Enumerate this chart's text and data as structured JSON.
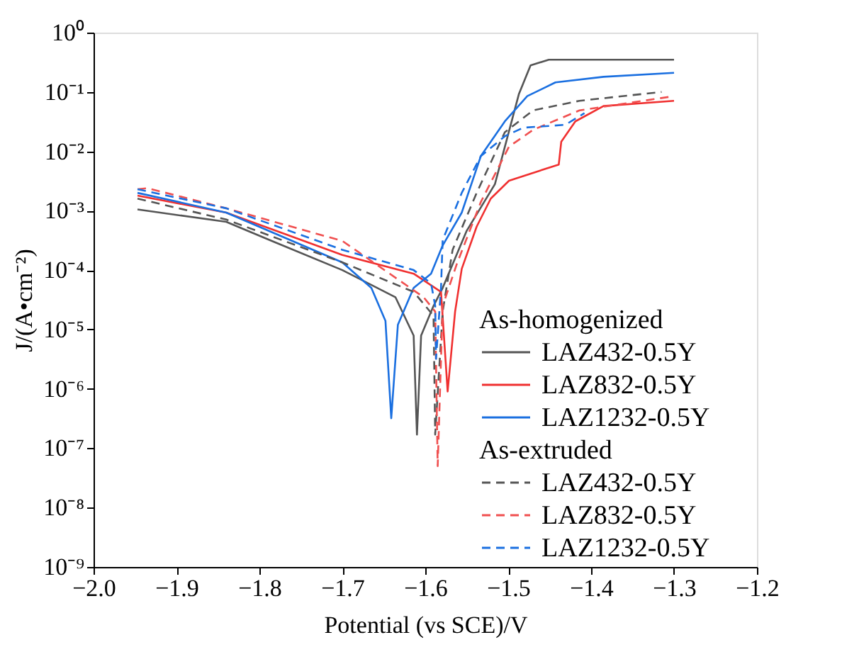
{
  "chart_data": {
    "type": "line",
    "xlabel": "Potential (vs SCE)/V",
    "ylabel": "J/(A•cm⁻²)",
    "xlim": [
      -2.0,
      -1.2
    ],
    "xticks": [
      {
        "value": -2.0,
        "label": "−2.0"
      },
      {
        "value": -1.9,
        "label": "−1.9"
      },
      {
        "value": -1.8,
        "label": "−1.8"
      },
      {
        "value": -1.7,
        "label": "−1.7"
      },
      {
        "value": -1.6,
        "label": "−1.6"
      },
      {
        "value": -1.5,
        "label": "−1.5"
      },
      {
        "value": -1.4,
        "label": "−1.4"
      },
      {
        "value": -1.3,
        "label": "−1.3"
      },
      {
        "value": -1.2,
        "label": "−1.2"
      }
    ],
    "ylim": [
      1e-09,
      1
    ],
    "log": "y",
    "yticks": [
      {
        "value": 1e-09,
        "label": "10⁻⁹"
      },
      {
        "value": 1e-08,
        "label": "10⁻⁸"
      },
      {
        "value": 1e-07,
        "label": "10⁻⁷"
      },
      {
        "value": 1e-06,
        "label": "10⁻⁶"
      },
      {
        "value": 1e-05,
        "label": "10⁻⁵"
      },
      {
        "value": 0.0001,
        "label": "10⁻⁴"
      },
      {
        "value": 0.001,
        "label": "10⁻³"
      },
      {
        "value": 0.01,
        "label": "10⁻²"
      },
      {
        "value": 0.1,
        "label": "10⁻¹"
      },
      {
        "value": 1,
        "label": "10⁰"
      }
    ],
    "grid": false,
    "legend": "right",
    "marker": "none",
    "annotations": [
      "As-homogenized",
      "As-extruded"
    ],
    "series": [
      {
        "name": "LAZ432-0.5Y",
        "color": "#555555",
        "line_style": "solid",
        "x": [
          -1.947,
          -1.84,
          -1.785,
          -1.7,
          -1.636,
          -1.614,
          -1.61,
          -1.605,
          -1.59,
          -1.579,
          -1.55,
          -1.516,
          -1.487,
          -1.473,
          -1.451,
          -1.3
        ],
        "values": [
          0.00105,
          0.00065,
          0.00031,
          0.0001,
          3.5e-05,
          7.9e-06,
          1.7e-07,
          7.9e-06,
          2.5e-05,
          5e-05,
          0.00046,
          0.0028,
          0.093,
          0.28,
          0.35,
          0.35
        ]
      },
      {
        "name": "LAZ832-0.5Y",
        "color": "#f03030",
        "line_style": "solid",
        "x": [
          -1.947,
          -1.84,
          -1.7,
          -1.614,
          -1.581,
          -1.573,
          -1.564,
          -1.556,
          -1.538,
          -1.521,
          -1.499,
          -1.439,
          -1.436,
          -1.419,
          -1.385,
          -1.3
        ],
        "values": [
          0.0018,
          0.00093,
          0.00018,
          8.7e-05,
          4.3e-05,
          9e-07,
          2e-05,
          0.000105,
          0.00054,
          0.0016,
          0.0032,
          0.006,
          0.0145,
          0.032,
          0.058,
          0.071
        ]
      },
      {
        "name": "LAZ1232-0.5Y",
        "color": "#1a6fe0",
        "line_style": "solid",
        "x": [
          -1.947,
          -1.84,
          -1.7,
          -1.665,
          -1.648,
          -1.641,
          -1.633,
          -1.614,
          -1.593,
          -1.579,
          -1.556,
          -1.533,
          -1.504,
          -1.477,
          -1.443,
          -1.385,
          -1.3
        ],
        "values": [
          0.002,
          0.00093,
          0.000135,
          5e-05,
          1.4e-05,
          3.2e-07,
          1.2e-05,
          5e-05,
          8.7e-05,
          0.00026,
          0.00093,
          0.0083,
          0.032,
          0.085,
          0.145,
          0.18,
          0.21
        ]
      },
      {
        "name": "LAZ432-0.5Y",
        "color": "#555555",
        "line_style": "dashed",
        "x": [
          -1.947,
          -1.84,
          -1.7,
          -1.614,
          -1.59,
          -1.588,
          -1.579,
          -1.567,
          -1.538,
          -1.504,
          -1.47,
          -1.414,
          -1.315
        ],
        "values": [
          0.0016,
          0.00071,
          0.000135,
          4.3e-05,
          1.7e-05,
          1.7e-07,
          2e-05,
          0.00022,
          0.002,
          0.021,
          0.049,
          0.071,
          0.1
        ]
      },
      {
        "name": "LAZ832-0.5Y",
        "color": "#f05050",
        "line_style": "dashed",
        "x": [
          -1.947,
          -1.935,
          -1.84,
          -1.7,
          -1.602,
          -1.588,
          -1.585,
          -1.579,
          -1.562,
          -1.533,
          -1.499,
          -1.47,
          -1.414,
          -1.3
        ],
        "values": [
          0.0023,
          0.0024,
          0.0011,
          0.00031,
          3.5e-05,
          2e-05,
          5e-08,
          2.5e-05,
          0.000126,
          0.0014,
          0.012,
          0.023,
          0.049,
          0.085
        ]
      },
      {
        "name": "LAZ1232-0.5Y",
        "color": "#1a6fe0",
        "line_style": "dashed",
        "x": [
          -1.947,
          -1.84,
          -1.7,
          -1.614,
          -1.593,
          -1.588,
          -1.587,
          -1.581,
          -1.579,
          -1.556,
          -1.533,
          -1.504,
          -1.482,
          -1.431,
          -1.408
        ],
        "values": [
          0.0023,
          0.0011,
          0.00022,
          0.0001,
          6e-05,
          2.5e-05,
          3.2e-06,
          5e-05,
          0.00032,
          0.002,
          0.0083,
          0.018,
          0.025,
          0.028,
          0.044
        ]
      }
    ]
  }
}
